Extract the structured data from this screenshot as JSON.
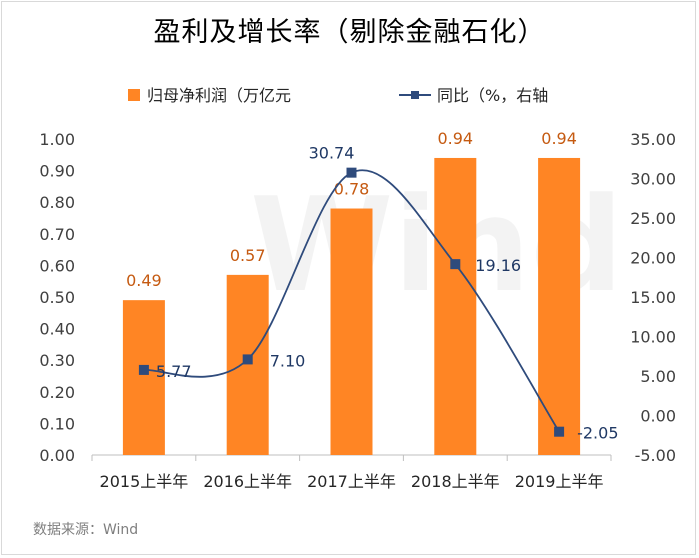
{
  "title": "盈利及增长率（剔除金融石化）",
  "source": "数据来源：Wind",
  "watermark": "Wind",
  "colors": {
    "bar": "#ff8524",
    "line": "#2f4b7c",
    "bar_label": "#c55a11",
    "line_label": "#1f3864"
  },
  "chart_data": {
    "type": "bar+line",
    "categories": [
      "2015上半年",
      "2016上半年",
      "2017上半年",
      "2018上半年",
      "2019上半年"
    ],
    "series": [
      {
        "name": "归母净利润（万亿元",
        "type": "bar",
        "axis": "left",
        "values": [
          0.49,
          0.57,
          0.78,
          0.94,
          0.94
        ],
        "labels": [
          "0.49",
          "0.57",
          "0.78",
          "0.94",
          "0.94"
        ]
      },
      {
        "name": "同比（%，右轴",
        "type": "line",
        "axis": "right",
        "smooth": true,
        "values": [
          5.77,
          7.1,
          30.74,
          19.16,
          -2.05
        ],
        "labels": [
          "5.77",
          "7.10",
          "30.74",
          "19.16",
          "-2.05"
        ]
      }
    ],
    "y_left": {
      "min": 0,
      "max": 1.0,
      "step": 0.1,
      "ticks": [
        "0.00",
        "0.10",
        "0.20",
        "0.30",
        "0.40",
        "0.50",
        "0.60",
        "0.70",
        "0.80",
        "0.90",
        "1.00"
      ]
    },
    "y_right": {
      "min": -5,
      "max": 35,
      "step": 5,
      "ticks": [
        "-5.00",
        "0.00",
        "5.00",
        "10.00",
        "15.00",
        "20.00",
        "25.00",
        "30.00",
        "35.00"
      ]
    },
    "legend_position": "top",
    "grid": false
  }
}
